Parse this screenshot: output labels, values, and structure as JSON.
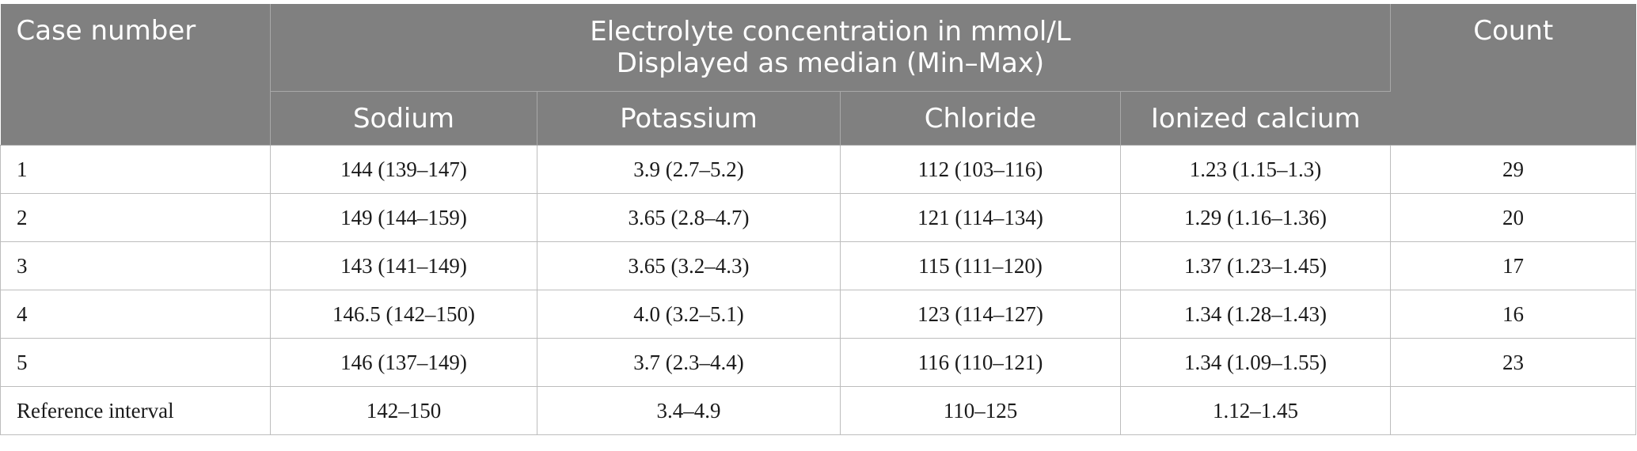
{
  "table": {
    "header": {
      "case_label": "Case number",
      "group_line1": "Electrolyte concentration in mmol/L",
      "group_line2": "Displayed as median (Min–Max)",
      "count_label": "Count",
      "sub_columns": [
        "Sodium",
        "Potassium",
        "Chloride",
        "Ionized calcium"
      ]
    },
    "rows": [
      {
        "case": "1",
        "sodium": "144 (139–147)",
        "potassium": "3.9 (2.7–5.2)",
        "chloride": "112 (103–116)",
        "calcium": "1.23 (1.15–1.3)",
        "count": "29"
      },
      {
        "case": "2",
        "sodium": "149 (144–159)",
        "potassium": "3.65 (2.8–4.7)",
        "chloride": "121 (114–134)",
        "calcium": "1.29 (1.16–1.36)",
        "count": "20"
      },
      {
        "case": "3",
        "sodium": "143 (141–149)",
        "potassium": "3.65 (3.2–4.3)",
        "chloride": "115 (111–120)",
        "calcium": "1.37 (1.23–1.45)",
        "count": "17"
      },
      {
        "case": "4",
        "sodium": "146.5 (142–150)",
        "potassium": "4.0 (3.2–5.1)",
        "chloride": "123 (114–127)",
        "calcium": "1.34 (1.28–1.43)",
        "count": "16"
      },
      {
        "case": "5",
        "sodium": "146 (137–149)",
        "potassium": "3.7 (2.3–4.4)",
        "chloride": "116 (110–121)",
        "calcium": "1.34 (1.09–1.55)",
        "count": "23"
      },
      {
        "case": "Reference interval",
        "sodium": "142–150",
        "potassium": "3.4–4.9",
        "chloride": "110–125",
        "calcium": "1.12–1.45",
        "count": ""
      }
    ],
    "colors": {
      "header_background": "#808080",
      "header_text": "#ffffff",
      "grid_line": "#bdbdbd"
    }
  }
}
